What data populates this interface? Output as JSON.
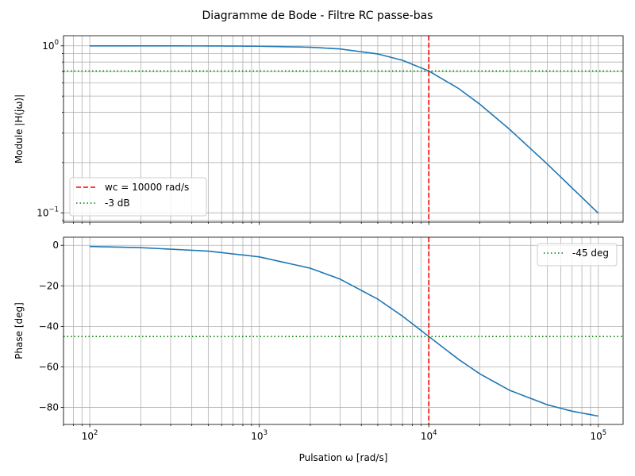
{
  "figure": {
    "title": "Diagramme de Bode - Filtre RC passe-bas"
  },
  "chart_data": [
    {
      "type": "line",
      "x_scale": "log",
      "y_scale": "log",
      "xlim": [
        70,
        140000
      ],
      "ylim": [
        0.088,
        1.15
      ],
      "ylabel": "Module |H(jω)|",
      "grid": true,
      "x_ticks": [
        {
          "value": 100,
          "base": "10",
          "exp": "2"
        },
        {
          "value": 1000,
          "base": "10",
          "exp": "3"
        },
        {
          "value": 10000,
          "base": "10",
          "exp": "4"
        },
        {
          "value": 100000,
          "base": "10",
          "exp": "5"
        }
      ],
      "y_ticks": [
        {
          "value": 0.1,
          "base": "10",
          "exp": "−1"
        },
        {
          "value": 1,
          "base": "10",
          "exp": "0"
        }
      ],
      "series": [
        {
          "name": "",
          "color": "#1f77b4",
          "x": [
            100,
            200,
            500,
            1000,
            2000,
            3000,
            5000,
            7000,
            10000,
            15000,
            20000,
            30000,
            50000,
            70000,
            100000
          ],
          "y": [
            1.0,
            0.9998,
            0.9988,
            0.995,
            0.981,
            0.958,
            0.894,
            0.819,
            0.707,
            0.555,
            0.447,
            0.316,
            0.196,
            0.141,
            0.0995
          ]
        }
      ],
      "reference_lines": [
        {
          "orientation": "vertical",
          "value": 10000,
          "color": "#ff0000",
          "style": "dashed",
          "label": "wc = 10000 rad/s"
        },
        {
          "orientation": "horizontal",
          "value": 0.707,
          "color": "#008000",
          "style": "dotted",
          "label": "-3 dB"
        }
      ],
      "legend": {
        "position": "lower-left",
        "entries": [
          "wc = 10000 rad/s",
          "-3 dB"
        ]
      }
    },
    {
      "type": "line",
      "x_scale": "log",
      "y_scale": "linear",
      "xlim": [
        70,
        140000
      ],
      "ylim": [
        -88.4,
        4.0
      ],
      "xlabel": "Pulsation ω [rad/s]",
      "ylabel": "Phase [deg]",
      "grid": true,
      "x_ticks": [
        {
          "value": 100,
          "base": "10",
          "exp": "2"
        },
        {
          "value": 1000,
          "base": "10",
          "exp": "3"
        },
        {
          "value": 10000,
          "base": "10",
          "exp": "4"
        },
        {
          "value": 100000,
          "base": "10",
          "exp": "5"
        }
      ],
      "y_ticks": [
        {
          "value": 0,
          "label": "0"
        },
        {
          "value": -20,
          "label": "−20"
        },
        {
          "value": -40,
          "label": "−40"
        },
        {
          "value": -60,
          "label": "−60"
        },
        {
          "value": -80,
          "label": "−80"
        }
      ],
      "series": [
        {
          "name": "",
          "color": "#1f77b4",
          "x": [
            100,
            200,
            500,
            1000,
            2000,
            3000,
            5000,
            7000,
            10000,
            15000,
            20000,
            30000,
            50000,
            70000,
            100000
          ],
          "y": [
            -0.57,
            -1.15,
            -2.86,
            -5.71,
            -11.31,
            -16.7,
            -26.57,
            -34.99,
            -45.0,
            -56.31,
            -63.43,
            -71.57,
            -78.69,
            -81.87,
            -84.29
          ]
        }
      ],
      "reference_lines": [
        {
          "orientation": "vertical",
          "value": 10000,
          "color": "#ff0000",
          "style": "dashed"
        },
        {
          "orientation": "horizontal",
          "value": -45,
          "color": "#008000",
          "style": "dotted",
          "label": "-45 deg"
        }
      ],
      "legend": {
        "position": "upper-right",
        "entries": [
          "-45 deg"
        ]
      }
    }
  ]
}
